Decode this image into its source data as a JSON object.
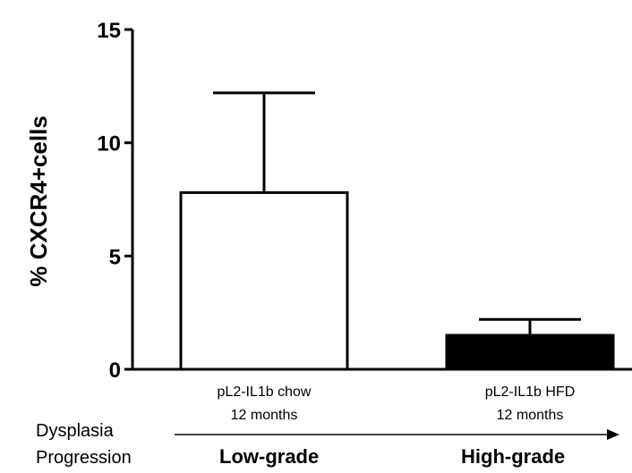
{
  "chart_data": {
    "type": "bar",
    "title": "",
    "ylabel": "% CXCR4+cells",
    "xlabel": "",
    "ylim": [
      0,
      15
    ],
    "yticks": [
      0,
      5,
      10,
      15
    ],
    "grid": false,
    "categories": [
      [
        "pL2-IL1b chow",
        "12 months"
      ],
      [
        "pL2-IL1b HFD",
        "12 months"
      ]
    ],
    "values": [
      7.8,
      1.5
    ],
    "error_upper": [
      12.2,
      2.2
    ],
    "fill_colors": [
      "#ffffff",
      "#000000"
    ]
  },
  "progression": {
    "label_line1": "Dysplasia",
    "label_line2": "Progression",
    "start_label": "Low-grade",
    "end_label": "High-grade"
  }
}
